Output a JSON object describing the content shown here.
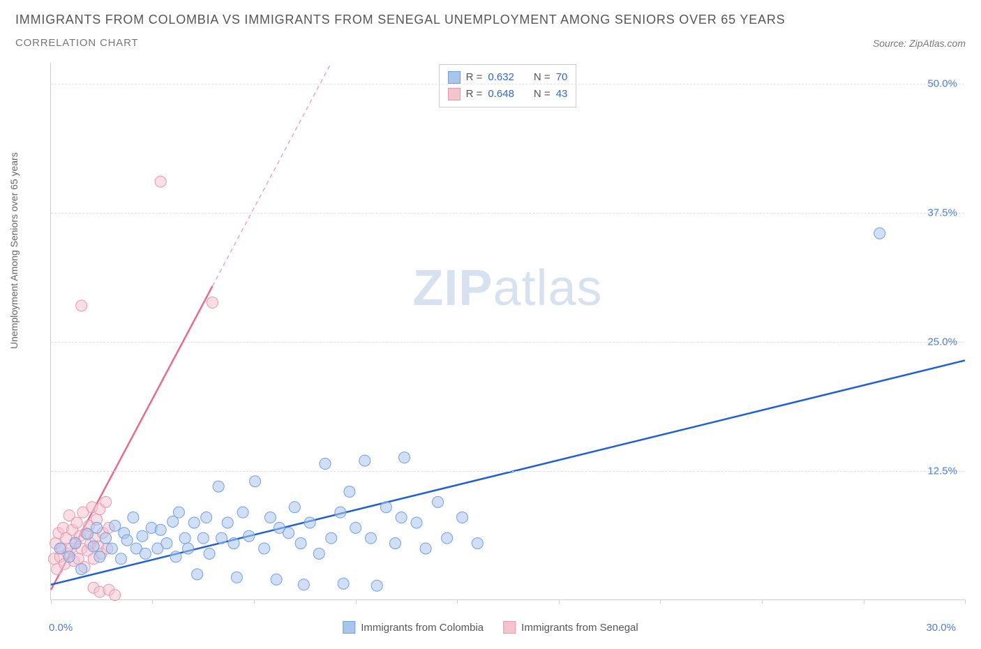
{
  "title": "IMMIGRANTS FROM COLOMBIA VS IMMIGRANTS FROM SENEGAL UNEMPLOYMENT AMONG SENIORS OVER 65 YEARS",
  "subtitle": "CORRELATION CHART",
  "source": "Source: ZipAtlas.com",
  "y_axis_label": "Unemployment Among Seniors over 65 years",
  "watermark_bold": "ZIP",
  "watermark_light": "atlas",
  "chart": {
    "type": "scatter",
    "background_color": "#ffffff",
    "grid_color": "#e0e0e0",
    "axis_color": "#cccccc",
    "tick_label_color": "#4a7dd8",
    "xlim": [
      0,
      30
    ],
    "ylim": [
      0,
      52
    ],
    "x_ticks": [
      0,
      3.33,
      6.67,
      10,
      13.33,
      16.67,
      20,
      23.33,
      26.67,
      30
    ],
    "x_tick_labels_shown": {
      "0": "0.0%",
      "30": "30.0%"
    },
    "y_gridlines": [
      12.5,
      25.0,
      37.5,
      50.0
    ],
    "y_tick_labels": [
      "12.5%",
      "25.0%",
      "37.5%",
      "50.0%"
    ],
    "series": [
      {
        "name": "Immigrants from Colombia",
        "color_fill": "#a9c5ec",
        "color_stroke": "#6f9fe0",
        "trend_color": "#1f5fd6",
        "trend_dash_color": "#6f9fe0",
        "marker_radius": 8,
        "marker_opacity": 0.55,
        "R": "0.632",
        "N": "70",
        "trend": {
          "x1": 0,
          "y1": 1.5,
          "x2": 30,
          "y2": 23.2,
          "solid_until_x": 30
        },
        "points": [
          [
            0.3,
            5.0
          ],
          [
            0.6,
            4.2
          ],
          [
            0.8,
            5.5
          ],
          [
            1.0,
            3.0
          ],
          [
            1.2,
            6.4
          ],
          [
            1.4,
            5.2
          ],
          [
            1.5,
            7.0
          ],
          [
            1.6,
            4.2
          ],
          [
            1.8,
            6.0
          ],
          [
            2.0,
            5.0
          ],
          [
            2.1,
            7.2
          ],
          [
            2.3,
            4.0
          ],
          [
            2.4,
            6.5
          ],
          [
            2.5,
            5.8
          ],
          [
            2.7,
            8.0
          ],
          [
            2.8,
            5.0
          ],
          [
            3.0,
            6.2
          ],
          [
            3.1,
            4.5
          ],
          [
            3.3,
            7.0
          ],
          [
            3.5,
            5.0
          ],
          [
            3.6,
            6.8
          ],
          [
            3.8,
            5.5
          ],
          [
            4.0,
            7.6
          ],
          [
            4.1,
            4.2
          ],
          [
            4.2,
            8.5
          ],
          [
            4.4,
            6.0
          ],
          [
            4.5,
            5.0
          ],
          [
            4.7,
            7.5
          ],
          [
            4.8,
            2.5
          ],
          [
            5.0,
            6.0
          ],
          [
            5.1,
            8.0
          ],
          [
            5.2,
            4.5
          ],
          [
            5.5,
            11.0
          ],
          [
            5.6,
            6.0
          ],
          [
            5.8,
            7.5
          ],
          [
            6.0,
            5.5
          ],
          [
            6.1,
            2.2
          ],
          [
            6.3,
            8.5
          ],
          [
            6.5,
            6.2
          ],
          [
            6.7,
            11.5
          ],
          [
            7.0,
            5.0
          ],
          [
            7.2,
            8.0
          ],
          [
            7.4,
            2.0
          ],
          [
            7.5,
            7.0
          ],
          [
            7.8,
            6.5
          ],
          [
            8.0,
            9.0
          ],
          [
            8.2,
            5.5
          ],
          [
            8.3,
            1.5
          ],
          [
            8.5,
            7.5
          ],
          [
            8.8,
            4.5
          ],
          [
            9.0,
            13.2
          ],
          [
            9.2,
            6.0
          ],
          [
            9.5,
            8.5
          ],
          [
            9.6,
            1.6
          ],
          [
            9.8,
            10.5
          ],
          [
            10.0,
            7.0
          ],
          [
            10.3,
            13.5
          ],
          [
            10.5,
            6.0
          ],
          [
            10.7,
            1.4
          ],
          [
            11.0,
            9.0
          ],
          [
            11.3,
            5.5
          ],
          [
            11.5,
            8.0
          ],
          [
            11.6,
            13.8
          ],
          [
            12.0,
            7.5
          ],
          [
            12.3,
            5.0
          ],
          [
            12.7,
            9.5
          ],
          [
            13.0,
            6.0
          ],
          [
            13.5,
            8.0
          ],
          [
            14.0,
            5.5
          ],
          [
            27.2,
            35.5
          ]
        ]
      },
      {
        "name": "Immigrants from Senegal",
        "color_fill": "#f4c4cf",
        "color_stroke": "#e995ab",
        "trend_color": "#e86b8d",
        "trend_dash_color": "#f0a5b8",
        "marker_radius": 8,
        "marker_opacity": 0.55,
        "R": "0.648",
        "N": "43",
        "trend": {
          "x1": 0,
          "y1": 1.0,
          "x2": 9.2,
          "y2": 52,
          "solid_until_x": 5.3
        },
        "points": [
          [
            0.1,
            4.0
          ],
          [
            0.15,
            5.5
          ],
          [
            0.2,
            3.0
          ],
          [
            0.25,
            6.5
          ],
          [
            0.3,
            4.2
          ],
          [
            0.35,
            5.0
          ],
          [
            0.4,
            7.0
          ],
          [
            0.45,
            3.5
          ],
          [
            0.5,
            6.0
          ],
          [
            0.55,
            4.5
          ],
          [
            0.6,
            8.2
          ],
          [
            0.65,
            5.0
          ],
          [
            0.7,
            6.8
          ],
          [
            0.75,
            3.8
          ],
          [
            0.8,
            5.6
          ],
          [
            0.85,
            7.5
          ],
          [
            0.9,
            4.0
          ],
          [
            0.95,
            6.2
          ],
          [
            1.0,
            5.0
          ],
          [
            1.05,
            8.5
          ],
          [
            1.1,
            3.2
          ],
          [
            1.15,
            6.5
          ],
          [
            1.2,
            4.8
          ],
          [
            1.25,
            7.2
          ],
          [
            1.3,
            5.5
          ],
          [
            1.35,
            9.0
          ],
          [
            1.4,
            4.0
          ],
          [
            1.45,
            6.0
          ],
          [
            1.5,
            7.8
          ],
          [
            1.55,
            5.2
          ],
          [
            1.6,
            8.8
          ],
          [
            1.65,
            4.5
          ],
          [
            1.7,
            6.5
          ],
          [
            1.8,
            9.5
          ],
          [
            1.85,
            5.0
          ],
          [
            1.9,
            7.0
          ],
          [
            1.4,
            1.2
          ],
          [
            1.6,
            0.8
          ],
          [
            1.9,
            1.0
          ],
          [
            2.1,
            0.5
          ],
          [
            1.0,
            28.5
          ],
          [
            3.6,
            40.5
          ],
          [
            5.3,
            28.8
          ]
        ]
      }
    ],
    "legend": {
      "items": [
        {
          "label": "Immigrants from Colombia",
          "fill": "#a9c5ec",
          "stroke": "#6f9fe0"
        },
        {
          "label": "Immigrants from Senegal",
          "fill": "#f4c4cf",
          "stroke": "#e995ab"
        }
      ]
    }
  }
}
